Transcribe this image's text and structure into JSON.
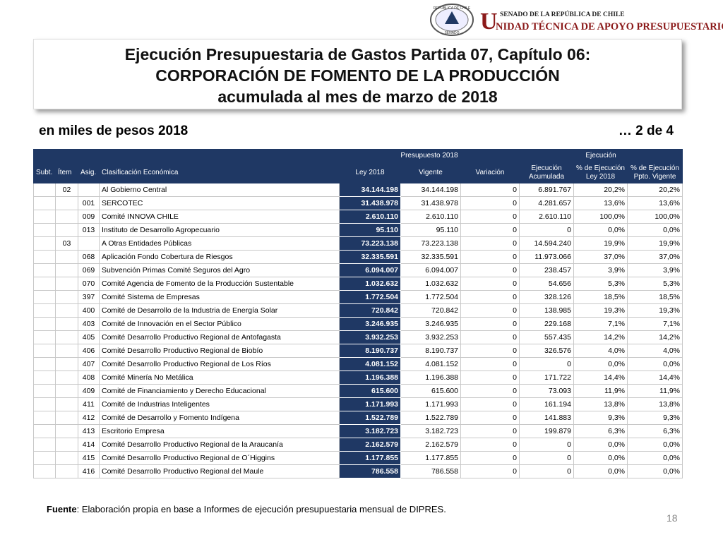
{
  "header": {
    "seal_top": "REPÚBLICA DE CHILE",
    "seal_bottom": "SENADO",
    "org_line1": "SENADO DE LA REPÚBLICA DE CHILE",
    "org_initial": "U",
    "org_line2": "NIDAD TÉCNICA DE APOYO PRESUPUESTARIO"
  },
  "title": {
    "line1": "Ejecución Presupuestaria de Gastos Partida 07, Capítulo 06:",
    "line2": "CORPORACIÓN DE FOMENTO DE LA PRODUCCIÓN",
    "line3": "acumulada al mes de marzo de 2018"
  },
  "subtitle": {
    "units": "en miles de pesos 2018",
    "page_of": "… 2 de 4"
  },
  "table": {
    "group_headers": {
      "presupuesto": "Presupuesto 2018",
      "ejecucion": "Ejecución"
    },
    "headers": {
      "subt": "Subt.",
      "item": "Ítem",
      "asig": "Asig.",
      "clasif": "Clasificación Económica",
      "ley": "Ley 2018",
      "vigente": "Vigente",
      "variacion": "Variación",
      "ejec": "Ejecución Acumulada",
      "pct_ley": "% de Ejecución Ley 2018",
      "pct_vig": "% de Ejecución Ppto. Vigente"
    },
    "rows": [
      {
        "item": "02",
        "clasif": "Al Gobierno Central",
        "ley": "34.144.198",
        "vigente": "34.144.198",
        "variacion": "0",
        "ejec": "6.891.767",
        "pct_ley": "20,2%",
        "pct_vig": "20,2%"
      },
      {
        "asig": "001",
        "clasif": "SERCOTEC",
        "ley": "31.438.978",
        "vigente": "31.438.978",
        "variacion": "0",
        "ejec": "4.281.657",
        "pct_ley": "13,6%",
        "pct_vig": "13,6%"
      },
      {
        "asig": "009",
        "clasif": "Comité INNOVA CHILE",
        "ley": "2.610.110",
        "vigente": "2.610.110",
        "variacion": "0",
        "ejec": "2.610.110",
        "pct_ley": "100,0%",
        "pct_vig": "100,0%"
      },
      {
        "asig": "013",
        "clasif": "Instituto de Desarrollo Agropecuario",
        "ley": "95.110",
        "vigente": "95.110",
        "variacion": "0",
        "ejec": "0",
        "pct_ley": "0,0%",
        "pct_vig": "0,0%"
      },
      {
        "item": "03",
        "clasif": "A Otras Entidades Públicas",
        "ley": "73.223.138",
        "vigente": "73.223.138",
        "variacion": "0",
        "ejec": "14.594.240",
        "pct_ley": "19,9%",
        "pct_vig": "19,9%"
      },
      {
        "asig": "068",
        "clasif": "Aplicación Fondo Cobertura de Riesgos",
        "ley": "32.335.591",
        "vigente": "32.335.591",
        "variacion": "0",
        "ejec": "11.973.066",
        "pct_ley": "37,0%",
        "pct_vig": "37,0%"
      },
      {
        "asig": "069",
        "clasif": "Subvención Primas Comité Seguros del Agro",
        "ley": "6.094.007",
        "vigente": "6.094.007",
        "variacion": "0",
        "ejec": "238.457",
        "pct_ley": "3,9%",
        "pct_vig": "3,9%"
      },
      {
        "asig": "070",
        "clasif": "Comité Agencia de Fomento de la Producción Sustentable",
        "ley": "1.032.632",
        "vigente": "1.032.632",
        "variacion": "0",
        "ejec": "54.656",
        "pct_ley": "5,3%",
        "pct_vig": "5,3%"
      },
      {
        "asig": "397",
        "clasif": "Comité Sistema de Empresas",
        "ley": "1.772.504",
        "vigente": "1.772.504",
        "variacion": "0",
        "ejec": "328.126",
        "pct_ley": "18,5%",
        "pct_vig": "18,5%"
      },
      {
        "asig": "400",
        "clasif": "Comité de Desarrollo de la Industria de Energía Solar",
        "ley": "720.842",
        "vigente": "720.842",
        "variacion": "0",
        "ejec": "138.985",
        "pct_ley": "19,3%",
        "pct_vig": "19,3%"
      },
      {
        "asig": "403",
        "clasif": "Comité de Innovación en el Sector Público",
        "ley": "3.246.935",
        "vigente": "3.246.935",
        "variacion": "0",
        "ejec": "229.168",
        "pct_ley": "7,1%",
        "pct_vig": "7,1%"
      },
      {
        "asig": "405",
        "clasif": "Comité Desarrollo Productivo Regional de Antofagasta",
        "ley": "3.932.253",
        "vigente": "3.932.253",
        "variacion": "0",
        "ejec": "557.435",
        "pct_ley": "14,2%",
        "pct_vig": "14,2%"
      },
      {
        "asig": "406",
        "clasif": "Comité Desarrollo Productivo Regional de Biobío",
        "ley": "8.190.737",
        "vigente": "8.190.737",
        "variacion": "0",
        "ejec": "326.576",
        "pct_ley": "4,0%",
        "pct_vig": "4,0%"
      },
      {
        "asig": "407",
        "clasif": "Comité Desarrollo Productivo Regional de Los Ríos",
        "ley": "4.081.152",
        "vigente": "4.081.152",
        "variacion": "0",
        "ejec": "0",
        "pct_ley": "0,0%",
        "pct_vig": "0,0%"
      },
      {
        "asig": "408",
        "clasif": "Comité Minería No Metálica",
        "ley": "1.196.388",
        "vigente": "1.196.388",
        "variacion": "0",
        "ejec": "171.722",
        "pct_ley": "14,4%",
        "pct_vig": "14,4%"
      },
      {
        "asig": "409",
        "clasif": "Comité de Financiamiento y Derecho Educacional",
        "ley": "615.600",
        "vigente": "615.600",
        "variacion": "0",
        "ejec": "73.093",
        "pct_ley": "11,9%",
        "pct_vig": "11,9%"
      },
      {
        "asig": "411",
        "clasif": "Comité de Industrias Inteligentes",
        "ley": "1.171.993",
        "vigente": "1.171.993",
        "variacion": "0",
        "ejec": "161.194",
        "pct_ley": "13,8%",
        "pct_vig": "13,8%"
      },
      {
        "asig": "412",
        "clasif": "Comité de Desarrollo y Fomento Indígena",
        "ley": "1.522.789",
        "vigente": "1.522.789",
        "variacion": "0",
        "ejec": "141.883",
        "pct_ley": "9,3%",
        "pct_vig": "9,3%"
      },
      {
        "asig": "413",
        "clasif": "Escritorio Empresa",
        "ley": "3.182.723",
        "vigente": "3.182.723",
        "variacion": "0",
        "ejec": "199.879",
        "pct_ley": "6,3%",
        "pct_vig": "6,3%"
      },
      {
        "asig": "414",
        "clasif": "Comité Desarrollo Productivo Regional de la Araucanía",
        "ley": "2.162.579",
        "vigente": "2.162.579",
        "variacion": "0",
        "ejec": "0",
        "pct_ley": "0,0%",
        "pct_vig": "0,0%"
      },
      {
        "asig": "415",
        "clasif": "Comité Desarrollo Productivo Regional de O´Higgins",
        "ley": "1.177.855",
        "vigente": "1.177.855",
        "variacion": "0",
        "ejec": "0",
        "pct_ley": "0,0%",
        "pct_vig": "0,0%"
      },
      {
        "asig": "416",
        "clasif": "Comité Desarrollo Productivo Regional del Maule",
        "ley": "786.558",
        "vigente": "786.558",
        "variacion": "0",
        "ejec": "0",
        "pct_ley": "0,0%",
        "pct_vig": "0,0%"
      }
    ]
  },
  "footer": {
    "source_label": "Fuente",
    "source_text": ": Elaboración propia en base a Informes de ejecución presupuestaria mensual de DIPRES.",
    "page_number": "18"
  }
}
